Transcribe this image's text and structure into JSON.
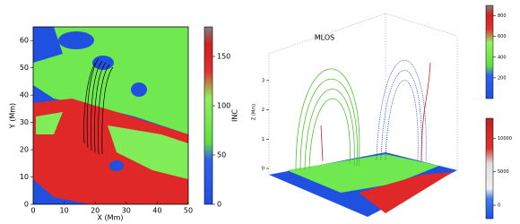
{
  "chart_data": [
    {
      "type": "heatmap",
      "xlabel": "X (Mm)",
      "ylabel": "Y (Mm)",
      "xlim": [
        0,
        50
      ],
      "ylim": [
        0,
        65
      ],
      "xticks": [
        0,
        10,
        20,
        30,
        40,
        50
      ],
      "yticks": [
        0,
        10,
        20,
        30,
        40,
        50,
        60
      ],
      "colorbar": {
        "label": "INC",
        "lim": [
          0,
          180
        ],
        "ticks": [
          0,
          50,
          100,
          150
        ]
      }
    },
    {
      "type": "surface3d",
      "title": "MLOS",
      "zlabel": "Z (Mm)",
      "zlim": [
        0,
        3.5
      ],
      "zticks": [
        0,
        1,
        2,
        3
      ],
      "colorbars": [
        {
          "lim": [
            0,
            900
          ],
          "ticks": [
            200,
            400,
            600,
            800
          ]
        },
        {
          "lim": [
            -2000,
            13000
          ],
          "ticks": [
            0,
            5000,
            10000
          ]
        }
      ]
    }
  ]
}
